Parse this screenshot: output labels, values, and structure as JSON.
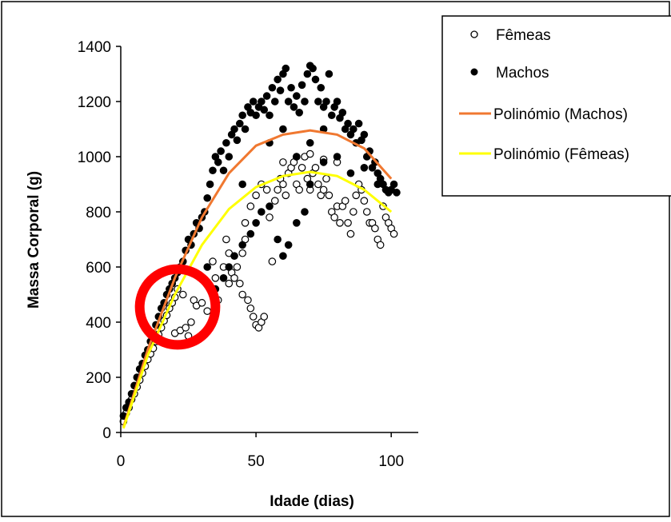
{
  "chart_data": {
    "type": "scatter",
    "title": "",
    "xlabel": "Idade (dias)",
    "ylabel": "Massa Corporal (g)",
    "xlim": [
      0,
      110
    ],
    "ylim": [
      0,
      1400
    ],
    "x_ticks": [
      0,
      50,
      100
    ],
    "y_ticks": [
      0,
      200,
      400,
      600,
      800,
      1000,
      1200,
      1400
    ],
    "grid": false,
    "legend_position": "top-right",
    "series": [
      {
        "name": "Fêmeas",
        "kind": "scatter",
        "marker": "open-circle",
        "color": "#000000",
        "fill": "#ffffff",
        "points": [
          [
            1,
            40
          ],
          [
            2,
            70
          ],
          [
            3,
            90
          ],
          [
            4,
            120
          ],
          [
            5,
            140
          ],
          [
            6,
            165
          ],
          [
            7,
            190
          ],
          [
            8,
            215
          ],
          [
            9,
            240
          ],
          [
            10,
            265
          ],
          [
            11,
            285
          ],
          [
            12,
            305
          ],
          [
            13,
            330
          ],
          [
            14,
            355
          ],
          [
            15,
            380
          ],
          [
            16,
            405
          ],
          [
            17,
            425
          ],
          [
            18,
            450
          ],
          [
            19,
            470
          ],
          [
            20,
            490
          ],
          [
            20,
            360
          ],
          [
            22,
            370
          ],
          [
            24,
            380
          ],
          [
            25,
            350
          ],
          [
            26,
            400
          ],
          [
            21,
            520
          ],
          [
            23,
            500
          ],
          [
            27,
            480
          ],
          [
            28,
            460
          ],
          [
            30,
            470
          ],
          [
            32,
            440
          ],
          [
            33,
            520
          ],
          [
            35,
            560
          ],
          [
            36,
            480
          ],
          [
            34,
            620
          ],
          [
            38,
            600
          ],
          [
            39,
            700
          ],
          [
            40,
            650
          ],
          [
            40,
            540
          ],
          [
            41,
            580
          ],
          [
            42,
            560
          ],
          [
            43,
            600
          ],
          [
            44,
            540
          ],
          [
            45,
            500
          ],
          [
            45,
            650
          ],
          [
            46,
            700
          ],
          [
            47,
            480
          ],
          [
            48,
            450
          ],
          [
            49,
            420
          ],
          [
            50,
            390
          ],
          [
            51,
            380
          ],
          [
            52,
            400
          ],
          [
            53,
            420
          ],
          [
            46,
            760
          ],
          [
            48,
            820
          ],
          [
            50,
            860
          ],
          [
            52,
            900
          ],
          [
            54,
            880
          ],
          [
            55,
            780
          ],
          [
            56,
            620
          ],
          [
            57,
            840
          ],
          [
            58,
            880
          ],
          [
            59,
            920
          ],
          [
            60,
            900
          ],
          [
            61,
            860
          ],
          [
            62,
            940
          ],
          [
            63,
            960
          ],
          [
            64,
            980
          ],
          [
            65,
            900
          ],
          [
            66,
            880
          ],
          [
            67,
            960
          ],
          [
            68,
            1000
          ],
          [
            69,
            920
          ],
          [
            70,
            880
          ],
          [
            71,
            940
          ],
          [
            72,
            960
          ],
          [
            73,
            900
          ],
          [
            74,
            860
          ],
          [
            75,
            880
          ],
          [
            76,
            920
          ],
          [
            77,
            860
          ],
          [
            78,
            800
          ],
          [
            79,
            780
          ],
          [
            80,
            820
          ],
          [
            81,
            760
          ],
          [
            82,
            820
          ],
          [
            83,
            840
          ],
          [
            84,
            760
          ],
          [
            85,
            720
          ],
          [
            86,
            800
          ],
          [
            87,
            860
          ],
          [
            88,
            900
          ],
          [
            89,
            880
          ],
          [
            90,
            840
          ],
          [
            91,
            800
          ],
          [
            92,
            760
          ],
          [
            93,
            760
          ],
          [
            94,
            740
          ],
          [
            95,
            700
          ],
          [
            96,
            680
          ],
          [
            97,
            820
          ],
          [
            98,
            780
          ],
          [
            99,
            760
          ],
          [
            100,
            740
          ],
          [
            101,
            720
          ],
          [
            60,
            980
          ],
          [
            65,
            1000
          ],
          [
            70,
            1010
          ],
          [
            75,
            990
          ],
          [
            80,
            980
          ]
        ]
      },
      {
        "name": "Machos",
        "kind": "scatter",
        "marker": "filled-circle",
        "color": "#000000",
        "fill": "#000000",
        "points": [
          [
            1,
            60
          ],
          [
            2,
            90
          ],
          [
            3,
            110
          ],
          [
            4,
            140
          ],
          [
            5,
            170
          ],
          [
            6,
            200
          ],
          [
            7,
            230
          ],
          [
            8,
            250
          ],
          [
            9,
            280
          ],
          [
            10,
            300
          ],
          [
            11,
            330
          ],
          [
            12,
            360
          ],
          [
            13,
            390
          ],
          [
            14,
            420
          ],
          [
            15,
            450
          ],
          [
            16,
            470
          ],
          [
            17,
            500
          ],
          [
            18,
            520
          ],
          [
            19,
            540
          ],
          [
            20,
            560
          ],
          [
            21,
            580
          ],
          [
            22,
            600
          ],
          [
            23,
            620
          ],
          [
            24,
            660
          ],
          [
            25,
            700
          ],
          [
            26,
            680
          ],
          [
            27,
            720
          ],
          [
            28,
            760
          ],
          [
            29,
            740
          ],
          [
            30,
            780
          ],
          [
            31,
            800
          ],
          [
            32,
            850
          ],
          [
            33,
            900
          ],
          [
            34,
            950
          ],
          [
            35,
            1000
          ],
          [
            36,
            980
          ],
          [
            37,
            1020
          ],
          [
            38,
            950
          ],
          [
            39,
            1050
          ],
          [
            40,
            1000
          ],
          [
            41,
            1080
          ],
          [
            42,
            1100
          ],
          [
            43,
            1060
          ],
          [
            44,
            1120
          ],
          [
            45,
            1150
          ],
          [
            46,
            1100
          ],
          [
            47,
            1180
          ],
          [
            48,
            1160
          ],
          [
            49,
            1200
          ],
          [
            50,
            1150
          ],
          [
            51,
            1180
          ],
          [
            52,
            1200
          ],
          [
            53,
            1170
          ],
          [
            54,
            1220
          ],
          [
            55,
            1150
          ],
          [
            56,
            1250
          ],
          [
            57,
            1200
          ],
          [
            58,
            1280
          ],
          [
            59,
            1240
          ],
          [
            60,
            1300
          ],
          [
            61,
            1320
          ],
          [
            62,
            1200
          ],
          [
            63,
            1250
          ],
          [
            64,
            1180
          ],
          [
            65,
            1220
          ],
          [
            66,
            1160
          ],
          [
            67,
            1260
          ],
          [
            68,
            1200
          ],
          [
            69,
            1300
          ],
          [
            70,
            1330
          ],
          [
            71,
            1320
          ],
          [
            72,
            1280
          ],
          [
            73,
            1200
          ],
          [
            74,
            1250
          ],
          [
            75,
            1180
          ],
          [
            76,
            1200
          ],
          [
            77,
            1300
          ],
          [
            78,
            1150
          ],
          [
            79,
            1180
          ],
          [
            80,
            1200
          ],
          [
            81,
            1140
          ],
          [
            82,
            1160
          ],
          [
            83,
            1100
          ],
          [
            84,
            1120
          ],
          [
            85,
            1080
          ],
          [
            86,
            1100
          ],
          [
            87,
            1050
          ],
          [
            88,
            1120
          ],
          [
            89,
            1060
          ],
          [
            90,
            1080
          ],
          [
            91,
            1000
          ],
          [
            92,
            1020
          ],
          [
            93,
            960
          ],
          [
            94,
            980
          ],
          [
            95,
            940
          ],
          [
            96,
            920
          ],
          [
            97,
            900
          ],
          [
            98,
            880
          ],
          [
            99,
            870
          ],
          [
            100,
            880
          ],
          [
            101,
            900
          ],
          [
            102,
            870
          ],
          [
            30,
            560
          ],
          [
            32,
            600
          ],
          [
            35,
            520
          ],
          [
            38,
            560
          ],
          [
            40,
            600
          ],
          [
            42,
            640
          ],
          [
            45,
            680
          ],
          [
            48,
            720
          ],
          [
            50,
            760
          ],
          [
            52,
            800
          ],
          [
            55,
            820
          ],
          [
            58,
            700
          ],
          [
            60,
            640
          ],
          [
            62,
            680
          ],
          [
            65,
            760
          ],
          [
            68,
            800
          ],
          [
            70,
            900
          ],
          [
            75,
            980
          ],
          [
            80,
            1000
          ],
          [
            85,
            940
          ],
          [
            90,
            960
          ],
          [
            95,
            900
          ],
          [
            55,
            1050
          ],
          [
            60,
            1100
          ],
          [
            65,
            1000
          ],
          [
            70,
            1050
          ],
          [
            75,
            1100
          ],
          [
            45,
            900
          ]
        ]
      },
      {
        "name": "Polinómio (Machos)",
        "kind": "line",
        "color": "#f07830",
        "points": [
          [
            1,
            20
          ],
          [
            10,
            300
          ],
          [
            20,
            560
          ],
          [
            30,
            780
          ],
          [
            40,
            940
          ],
          [
            50,
            1040
          ],
          [
            60,
            1080
          ],
          [
            70,
            1095
          ],
          [
            80,
            1080
          ],
          [
            90,
            1030
          ],
          [
            100,
            920
          ]
        ]
      },
      {
        "name": "Polinómio (Fêmeas)",
        "kind": "line",
        "color": "#ffff00",
        "points": [
          [
            1,
            15
          ],
          [
            10,
            280
          ],
          [
            20,
            500
          ],
          [
            30,
            680
          ],
          [
            40,
            810
          ],
          [
            50,
            890
          ],
          [
            60,
            930
          ],
          [
            70,
            945
          ],
          [
            80,
            930
          ],
          [
            90,
            880
          ],
          [
            100,
            800
          ]
        ]
      }
    ],
    "annotation": {
      "shape": "circle",
      "color": "#ff0000",
      "center": [
        21,
        455
      ],
      "radius_x_units": 14
    }
  }
}
